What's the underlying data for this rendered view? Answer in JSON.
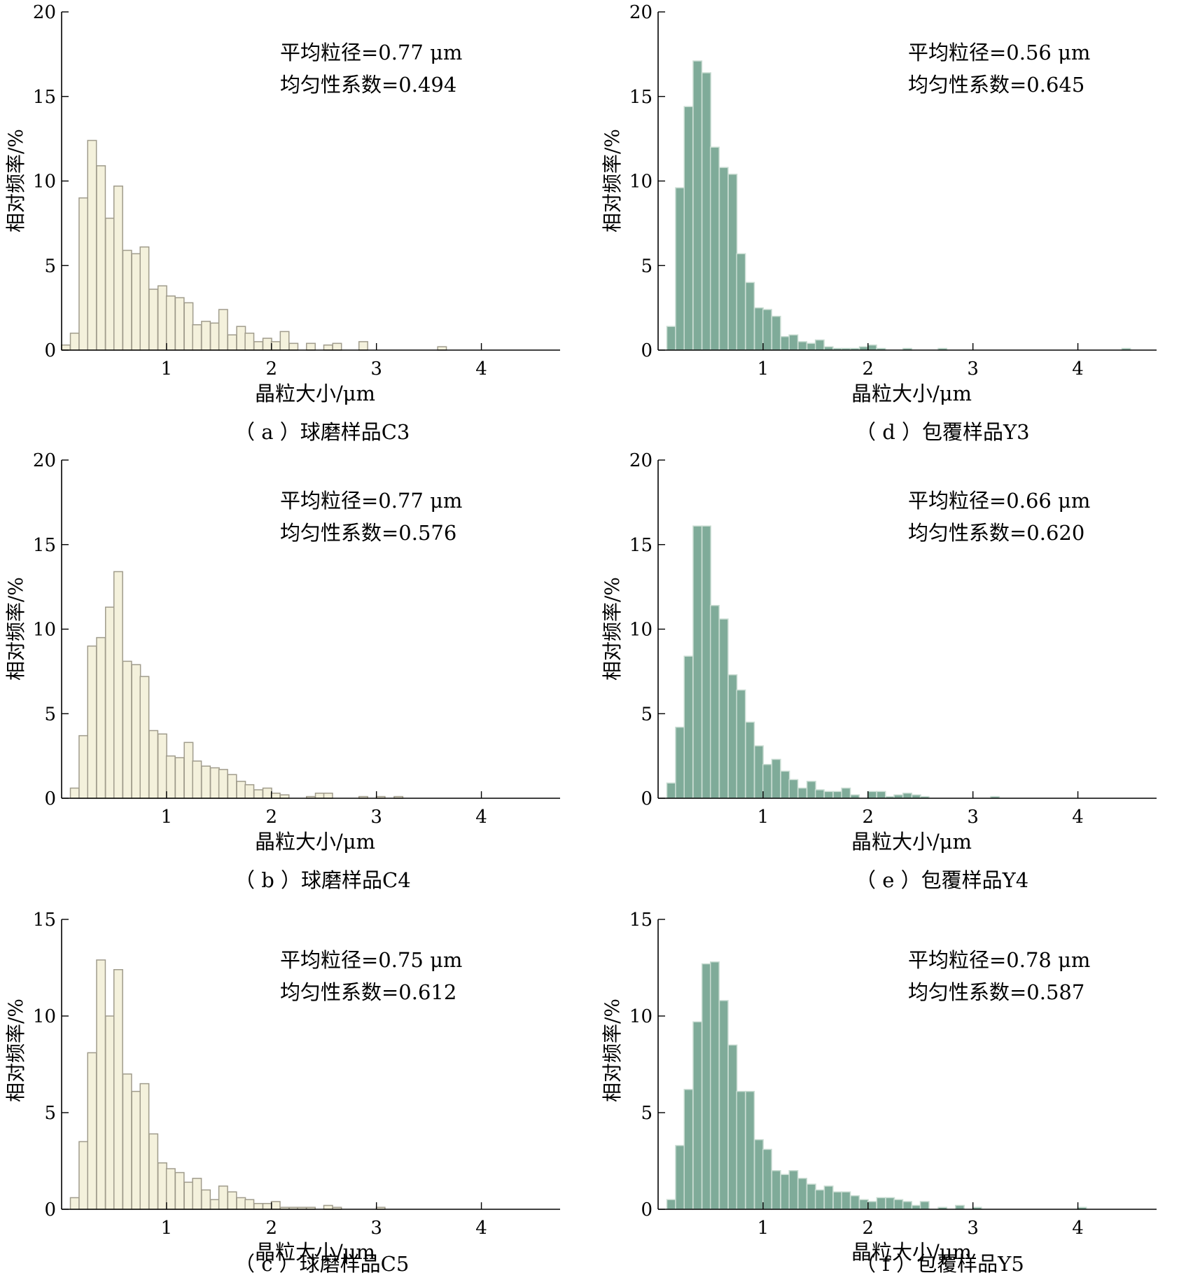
{
  "colors": {
    "cream_fill": "#f4f1dc",
    "cream_edge": "#a09c8c",
    "green_fill": "#7fab99",
    "green_edge": "#c9dcd2",
    "axis": "#000000"
  },
  "chart_data": [
    {
      "id": "a",
      "type": "bar",
      "caption": "（ a ）球磨样品C3",
      "color": "cream",
      "xlabel": "晶粒大小/μm",
      "ylabel": "相对频率/%",
      "xticks": [
        1,
        2,
        3,
        4
      ],
      "yticks": [
        0,
        5,
        10,
        15,
        20
      ],
      "ylim": [
        0,
        20
      ],
      "xlim": [
        0,
        4.75
      ],
      "annotation": [
        "平均粒径=0.77 μm",
        "均匀性系数=0.494"
      ],
      "bin_width": 0.083,
      "bins": [
        [
          0.04,
          0.3
        ],
        [
          0.125,
          1.0
        ],
        [
          0.208,
          9.0
        ],
        [
          0.29,
          12.4
        ],
        [
          0.375,
          10.9
        ],
        [
          0.46,
          7.8
        ],
        [
          0.54,
          9.7
        ],
        [
          0.625,
          5.9
        ],
        [
          0.71,
          5.7
        ],
        [
          0.79,
          6.1
        ],
        [
          0.875,
          3.6
        ],
        [
          0.96,
          3.8
        ],
        [
          1.04,
          3.2
        ],
        [
          1.125,
          3.1
        ],
        [
          1.21,
          2.8
        ],
        [
          1.29,
          1.5
        ],
        [
          1.375,
          1.7
        ],
        [
          1.46,
          1.6
        ],
        [
          1.54,
          2.4
        ],
        [
          1.625,
          0.9
        ],
        [
          1.71,
          1.4
        ],
        [
          1.79,
          1.0
        ],
        [
          1.875,
          0.5
        ],
        [
          1.96,
          0.7
        ],
        [
          2.04,
          0.5
        ],
        [
          2.125,
          1.1
        ],
        [
          2.21,
          0.4
        ],
        [
          2.375,
          0.4
        ],
        [
          2.54,
          0.3
        ],
        [
          2.625,
          0.4
        ],
        [
          2.875,
          0.5
        ],
        [
          3.625,
          0.2
        ]
      ]
    },
    {
      "id": "d",
      "type": "bar",
      "caption": "（ d ）包覆样品Y3",
      "color": "green",
      "xlabel": "晶粒大小/μm",
      "ylabel": "相对频率/%",
      "xticks": [
        1,
        2,
        3,
        4
      ],
      "yticks": [
        0,
        5,
        10,
        15,
        20
      ],
      "ylim": [
        0,
        20
      ],
      "xlim": [
        0,
        4.75
      ],
      "annotation": [
        "平均粒径=0.56 μm",
        "均匀性系数=0.645"
      ],
      "bin_width": 0.083,
      "bins": [
        [
          0.125,
          1.4
        ],
        [
          0.208,
          9.6
        ],
        [
          0.29,
          14.4
        ],
        [
          0.375,
          17.1
        ],
        [
          0.46,
          16.4
        ],
        [
          0.54,
          12.0
        ],
        [
          0.625,
          10.8
        ],
        [
          0.71,
          10.4
        ],
        [
          0.79,
          5.7
        ],
        [
          0.875,
          4.0
        ],
        [
          0.96,
          2.5
        ],
        [
          1.04,
          2.4
        ],
        [
          1.125,
          2.0
        ],
        [
          1.21,
          0.8
        ],
        [
          1.29,
          0.9
        ],
        [
          1.375,
          0.5
        ],
        [
          1.46,
          0.4
        ],
        [
          1.54,
          0.6
        ],
        [
          1.625,
          0.2
        ],
        [
          1.71,
          0.1
        ],
        [
          1.79,
          0.1
        ],
        [
          1.875,
          0.1
        ],
        [
          1.96,
          0.2
        ],
        [
          2.04,
          0.3
        ],
        [
          2.125,
          0.1
        ],
        [
          2.375,
          0.1
        ],
        [
          2.71,
          0.1
        ],
        [
          4.46,
          0.1
        ]
      ]
    },
    {
      "id": "b",
      "type": "bar",
      "caption": "（ b ）球磨样品C4",
      "color": "cream",
      "xlabel": "晶粒大小/μm",
      "ylabel": "相对频率/%",
      "xticks": [
        1,
        2,
        3,
        4
      ],
      "yticks": [
        0,
        5,
        10,
        15,
        20
      ],
      "ylim": [
        0,
        20
      ],
      "xlim": [
        0,
        4.75
      ],
      "annotation": [
        "平均粒径=0.77 μm",
        "均匀性系数=0.576"
      ],
      "bin_width": 0.083,
      "bins": [
        [
          0.125,
          0.6
        ],
        [
          0.208,
          3.7
        ],
        [
          0.29,
          9.0
        ],
        [
          0.375,
          9.5
        ],
        [
          0.46,
          11.3
        ],
        [
          0.54,
          13.4
        ],
        [
          0.625,
          8.1
        ],
        [
          0.71,
          7.9
        ],
        [
          0.79,
          7.2
        ],
        [
          0.875,
          4.0
        ],
        [
          0.96,
          3.8
        ],
        [
          1.04,
          2.5
        ],
        [
          1.125,
          2.4
        ],
        [
          1.21,
          3.3
        ],
        [
          1.29,
          2.2
        ],
        [
          1.375,
          1.9
        ],
        [
          1.46,
          1.8
        ],
        [
          1.54,
          1.7
        ],
        [
          1.625,
          1.4
        ],
        [
          1.71,
          1.0
        ],
        [
          1.79,
          0.8
        ],
        [
          1.875,
          0.5
        ],
        [
          1.96,
          0.6
        ],
        [
          2.04,
          0.3
        ],
        [
          2.125,
          0.2
        ],
        [
          2.375,
          0.1
        ],
        [
          2.46,
          0.3
        ],
        [
          2.54,
          0.3
        ],
        [
          2.875,
          0.1
        ],
        [
          3.04,
          0.1
        ],
        [
          3.21,
          0.1
        ]
      ]
    },
    {
      "id": "e",
      "type": "bar",
      "caption": "（ e ）包覆样品Y4",
      "color": "green",
      "xlabel": "晶粒大小/μm",
      "ylabel": "相对频率/%",
      "xticks": [
        1,
        2,
        3,
        4
      ],
      "yticks": [
        0,
        5,
        10,
        15,
        20
      ],
      "ylim": [
        0,
        20
      ],
      "xlim": [
        0,
        4.75
      ],
      "annotation": [
        "平均粒径=0.66 μm",
        "均匀性系数=0.620"
      ],
      "bin_width": 0.083,
      "bins": [
        [
          0.125,
          0.9
        ],
        [
          0.208,
          4.2
        ],
        [
          0.29,
          8.4
        ],
        [
          0.375,
          16.1
        ],
        [
          0.46,
          16.1
        ],
        [
          0.54,
          11.4
        ],
        [
          0.625,
          10.6
        ],
        [
          0.71,
          7.3
        ],
        [
          0.79,
          6.4
        ],
        [
          0.875,
          4.5
        ],
        [
          0.96,
          3.1
        ],
        [
          1.04,
          2.0
        ],
        [
          1.125,
          2.3
        ],
        [
          1.21,
          1.6
        ],
        [
          1.29,
          1.1
        ],
        [
          1.375,
          0.6
        ],
        [
          1.46,
          1.0
        ],
        [
          1.54,
          0.5
        ],
        [
          1.625,
          0.4
        ],
        [
          1.71,
          0.4
        ],
        [
          1.79,
          0.6
        ],
        [
          1.875,
          0.2
        ],
        [
          2.04,
          0.4
        ],
        [
          2.125,
          0.4
        ],
        [
          2.21,
          0.1
        ],
        [
          2.29,
          0.2
        ],
        [
          2.375,
          0.3
        ],
        [
          2.46,
          0.2
        ],
        [
          2.54,
          0.1
        ],
        [
          3.21,
          0.1
        ]
      ]
    },
    {
      "id": "c",
      "type": "bar",
      "caption": "（ c ）球磨样品C5",
      "color": "cream",
      "xlabel": "晶粒大小/μm",
      "ylabel": "相对频率/%",
      "xticks": [
        1,
        2,
        3,
        4
      ],
      "yticks": [
        0,
        5,
        10,
        15
      ],
      "ylim": [
        0,
        15
      ],
      "xlim": [
        0,
        4.75
      ],
      "annotation": [
        "平均粒径=0.75 μm",
        "均匀性系数=0.612"
      ],
      "bin_width": 0.083,
      "bins": [
        [
          0.125,
          0.6
        ],
        [
          0.208,
          3.5
        ],
        [
          0.29,
          8.1
        ],
        [
          0.375,
          12.9
        ],
        [
          0.46,
          10.0
        ],
        [
          0.54,
          12.4
        ],
        [
          0.625,
          7.0
        ],
        [
          0.71,
          6.1
        ],
        [
          0.79,
          6.5
        ],
        [
          0.875,
          3.9
        ],
        [
          0.96,
          2.4
        ],
        [
          1.04,
          2.1
        ],
        [
          1.125,
          1.9
        ],
        [
          1.21,
          1.4
        ],
        [
          1.29,
          1.6
        ],
        [
          1.375,
          1.0
        ],
        [
          1.46,
          0.5
        ],
        [
          1.54,
          1.2
        ],
        [
          1.625,
          0.9
        ],
        [
          1.71,
          0.6
        ],
        [
          1.79,
          0.5
        ],
        [
          1.875,
          0.3
        ],
        [
          1.96,
          0.3
        ],
        [
          2.04,
          0.4
        ],
        [
          2.125,
          0.1
        ],
        [
          2.21,
          0.1
        ],
        [
          2.29,
          0.1
        ],
        [
          2.375,
          0.1
        ],
        [
          2.54,
          0.2
        ],
        [
          2.625,
          0.1
        ],
        [
          3.04,
          0.1
        ]
      ]
    },
    {
      "id": "f",
      "type": "bar",
      "caption": "（ f ）包覆样品Y5",
      "color": "green",
      "xlabel": "晶粒大小/μm",
      "ylabel": "相对频率/%",
      "xticks": [
        1,
        2,
        3,
        4
      ],
      "yticks": [
        0,
        5,
        10,
        15
      ],
      "ylim": [
        0,
        15
      ],
      "xlim": [
        0,
        4.75
      ],
      "annotation": [
        "平均粒径=0.78 μm",
        "均匀性系数=0.587"
      ],
      "bin_width": 0.083,
      "bins": [
        [
          0.125,
          0.5
        ],
        [
          0.208,
          3.3
        ],
        [
          0.29,
          6.2
        ],
        [
          0.375,
          9.7
        ],
        [
          0.46,
          12.7
        ],
        [
          0.54,
          12.8
        ],
        [
          0.625,
          10.8
        ],
        [
          0.71,
          8.5
        ],
        [
          0.79,
          6.1
        ],
        [
          0.875,
          6.1
        ],
        [
          0.96,
          3.6
        ],
        [
          1.04,
          3.1
        ],
        [
          1.125,
          2.0
        ],
        [
          1.21,
          1.8
        ],
        [
          1.29,
          2.0
        ],
        [
          1.375,
          1.6
        ],
        [
          1.46,
          1.3
        ],
        [
          1.54,
          1.0
        ],
        [
          1.625,
          1.2
        ],
        [
          1.71,
          0.9
        ],
        [
          1.79,
          0.9
        ],
        [
          1.875,
          0.7
        ],
        [
          1.96,
          0.5
        ],
        [
          2.04,
          0.4
        ],
        [
          2.125,
          0.6
        ],
        [
          2.21,
          0.6
        ],
        [
          2.29,
          0.5
        ],
        [
          2.375,
          0.4
        ],
        [
          2.46,
          0.2
        ],
        [
          2.54,
          0.4
        ],
        [
          2.71,
          0.1
        ],
        [
          2.875,
          0.2
        ],
        [
          3.04,
          0.1
        ],
        [
          4.04,
          0.1
        ]
      ]
    }
  ]
}
